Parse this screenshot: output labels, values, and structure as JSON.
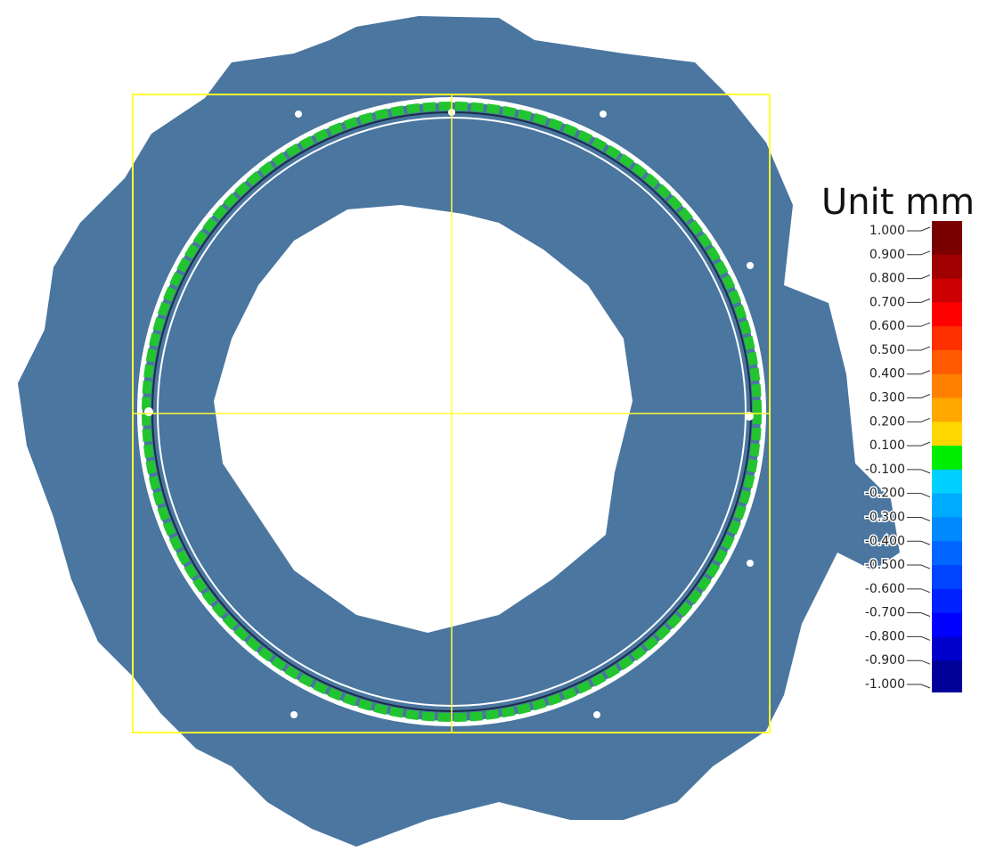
{
  "legend": {
    "title": "Unit mm",
    "labels": [
      "1.000",
      "0.900",
      "0.800",
      "0.700",
      "0.600",
      "0.500",
      "0.400",
      "0.300",
      "0.200",
      "0.100",
      "-0.100",
      "-0.200",
      "-0.300",
      "-0.400",
      "-0.500",
      "-0.600",
      "-0.700",
      "-0.800",
      "-0.900",
      "-1.000"
    ],
    "colors": [
      "#7a0000",
      "#a00000",
      "#cc0000",
      "#ff0000",
      "#ff3000",
      "#ff5a00",
      "#ff8000",
      "#ffa800",
      "#ffd700",
      "#00ee00",
      "#00d0ff",
      "#00aaff",
      "#0088ff",
      "#0066ff",
      "#0044ff",
      "#0022ff",
      "#0000ff",
      "#0000cc",
      "#000099"
    ]
  }
}
